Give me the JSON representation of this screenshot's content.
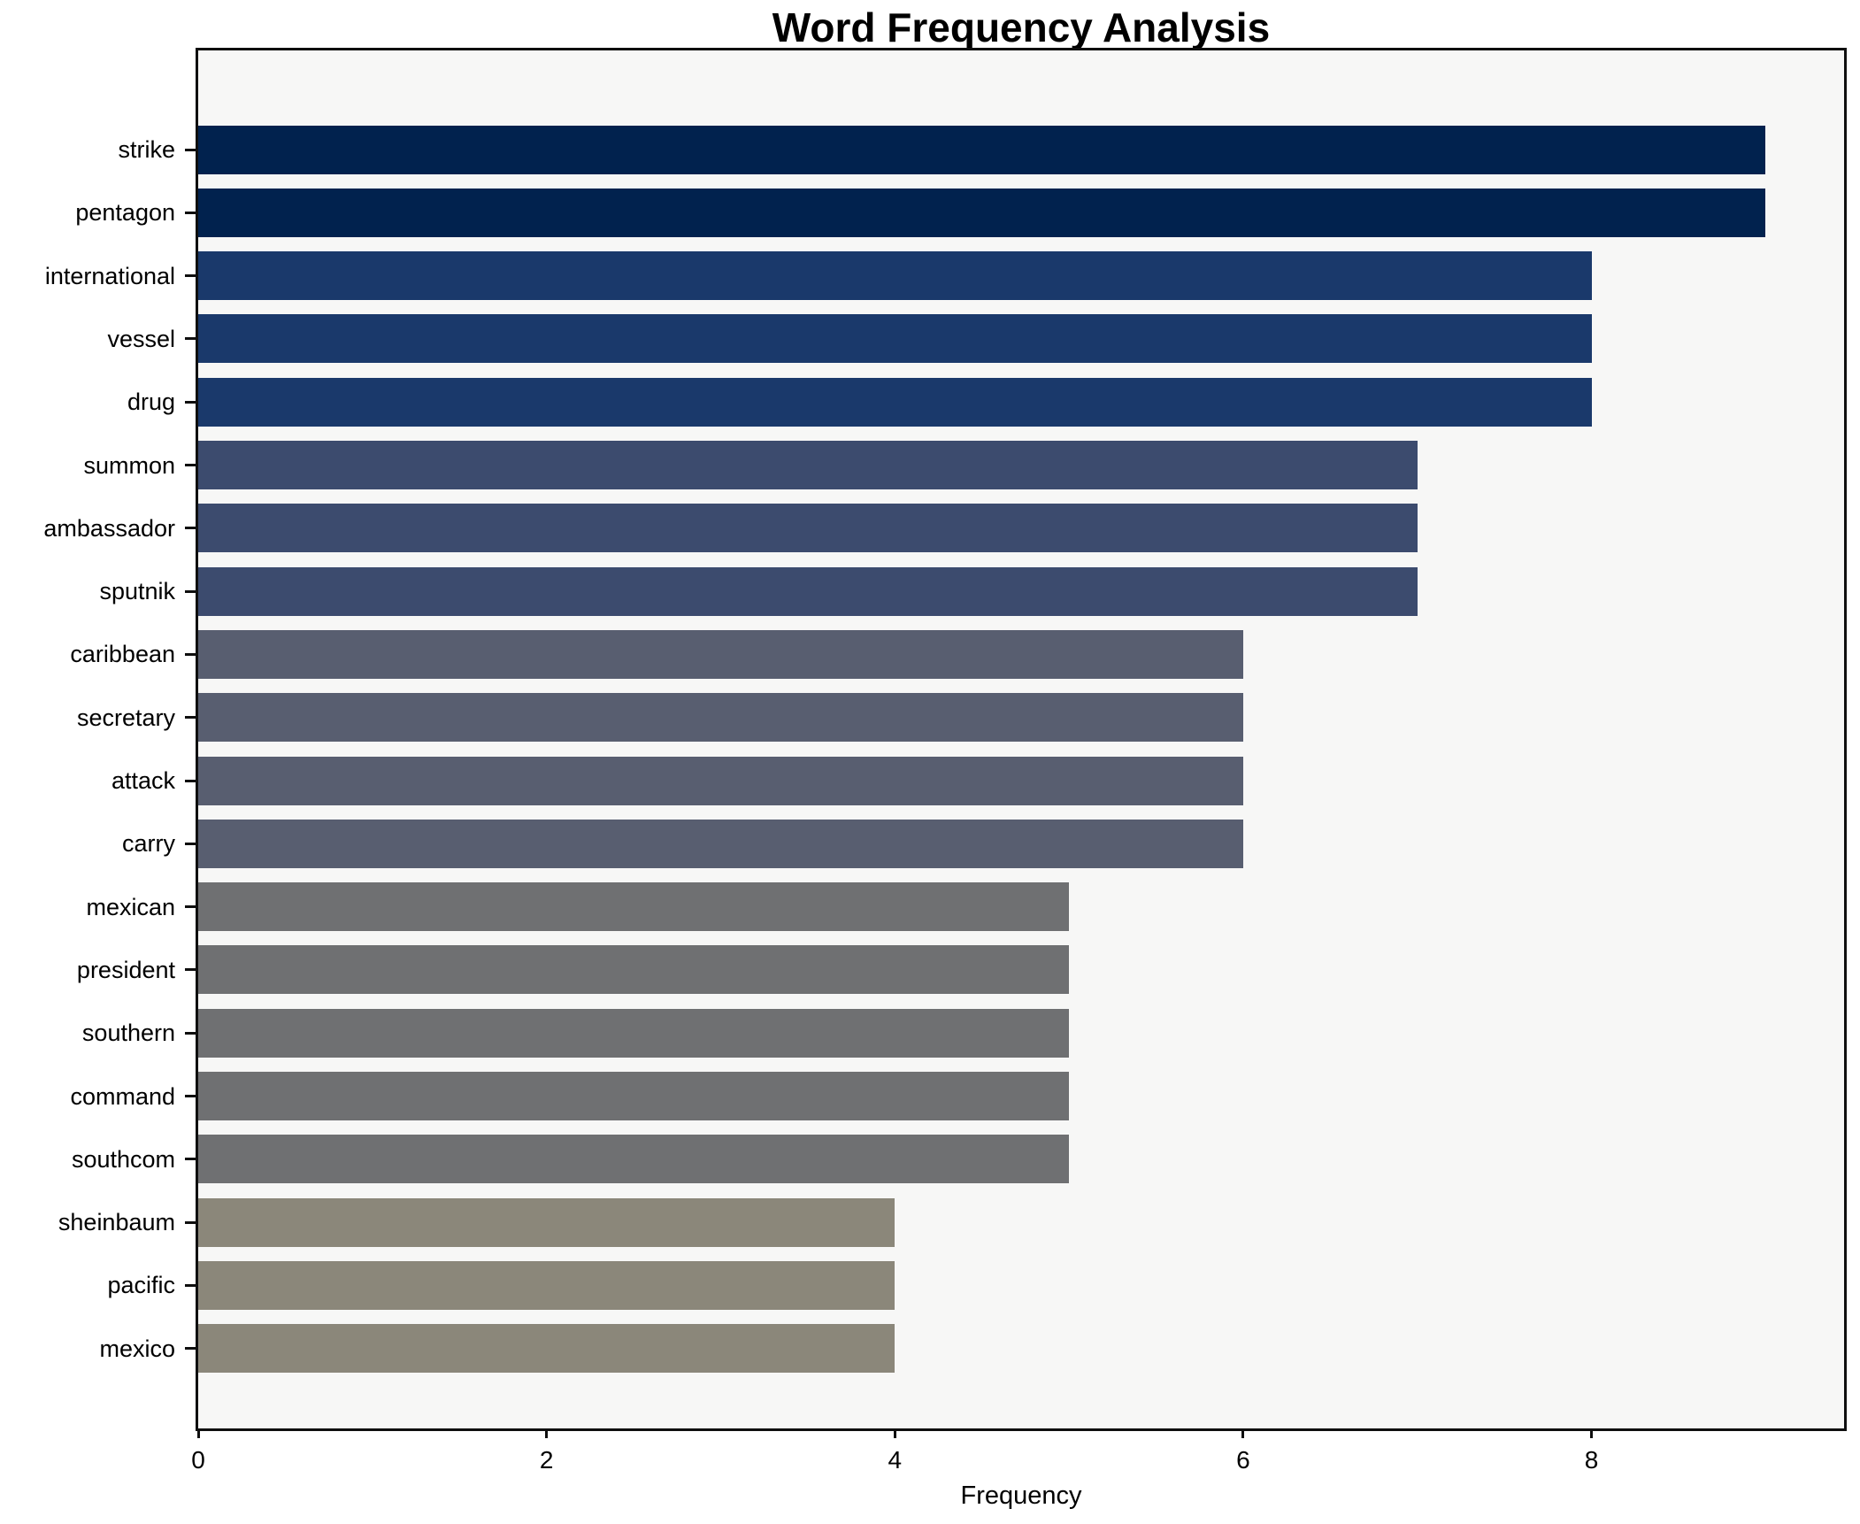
{
  "chart_data": {
    "type": "bar",
    "orientation": "horizontal",
    "title": "Word Frequency Analysis",
    "xlabel": "Frequency",
    "ylabel": "",
    "categories": [
      "strike",
      "pentagon",
      "international",
      "vessel",
      "drug",
      "summon",
      "ambassador",
      "sputnik",
      "caribbean",
      "secretary",
      "attack",
      "carry",
      "mexican",
      "president",
      "southern",
      "command",
      "southcom",
      "sheinbaum",
      "pacific",
      "mexico"
    ],
    "values": [
      9,
      9,
      8,
      8,
      8,
      7,
      7,
      7,
      6,
      6,
      6,
      6,
      5,
      5,
      5,
      5,
      5,
      4,
      4,
      4
    ],
    "bar_colors": [
      "#01224e",
      "#01224e",
      "#1a396b",
      "#1a396b",
      "#1a396b",
      "#3c4b6e",
      "#3c4b6e",
      "#3c4b6e",
      "#585e70",
      "#585e70",
      "#585e70",
      "#585e70",
      "#6f7072",
      "#6f7072",
      "#6f7072",
      "#6f7072",
      "#6f7072",
      "#8b877a",
      "#8b877a",
      "#8b877a"
    ],
    "xlim": [
      0,
      9.45
    ],
    "xticks": [
      "0",
      "2",
      "4",
      "6",
      "8"
    ],
    "xtick_values": [
      0,
      2,
      4,
      6,
      8
    ],
    "grid": false,
    "legend": "none",
    "axes_facecolor": "#f7f7f6",
    "figure_facecolor": "#ffffff",
    "spine_color": "#0f0f0f",
    "text_color": "#000000"
  }
}
